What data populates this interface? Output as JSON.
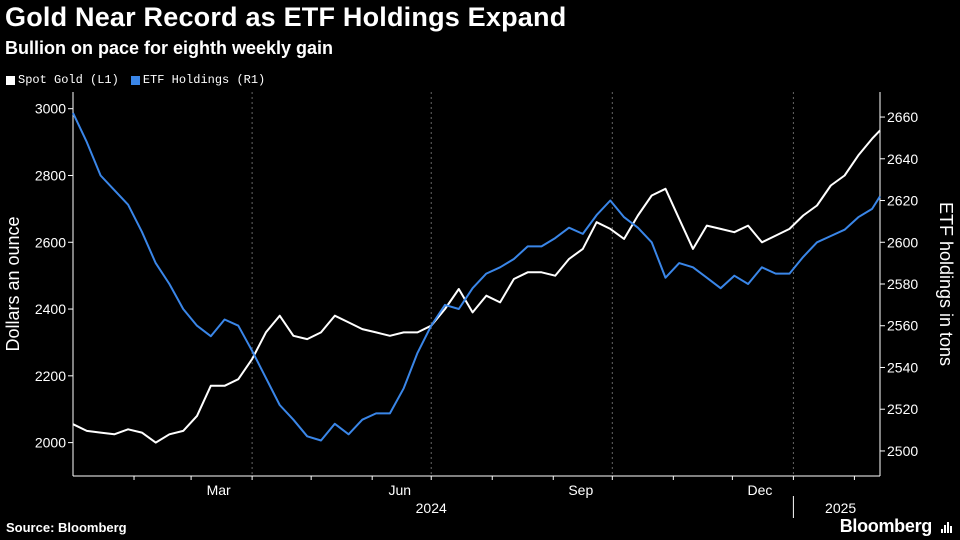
{
  "header": {
    "title": "Gold Near Record as ETF Holdings Expand",
    "subtitle": "Bullion on pace for eighth weekly gain"
  },
  "footer": {
    "source": "Source: Bloomberg",
    "brand": "Bloomberg"
  },
  "colors": {
    "background": "#000000",
    "spot_gold": "#ffffff",
    "etf_holdings": "#3a86e8",
    "grid": "#666666"
  },
  "chart_data": {
    "type": "line",
    "title": "Gold Near Record as ETF Holdings Expand",
    "subtitle": "Bullion on pace for eighth weekly gain",
    "x_range": [
      "2024-01-01",
      "2025-02-14"
    ],
    "x_tick_labels": [
      "Mar",
      "Jun",
      "Sep",
      "Dec",
      "2025"
    ],
    "x_year_labels": [
      "2024",
      "2025"
    ],
    "left_axis": {
      "label": "Dollars an ounce",
      "range": [
        1900,
        3050
      ],
      "ticks": [
        2000,
        2200,
        2400,
        2600,
        2800,
        3000
      ]
    },
    "right_axis": {
      "label": "ETF holdings in tons",
      "range": [
        2488,
        2672
      ],
      "ticks": [
        2500,
        2520,
        2540,
        2560,
        2580,
        2600,
        2620,
        2640,
        2660
      ]
    },
    "grid": "dashed vertical lines at quarters",
    "legend_position": "top-left",
    "series": [
      {
        "name": "Spot Gold (L1)",
        "axis": "left",
        "x": [
          "2024-01-01",
          "2024-01-08",
          "2024-01-15",
          "2024-01-22",
          "2024-01-29",
          "2024-02-05",
          "2024-02-12",
          "2024-02-19",
          "2024-02-26",
          "2024-03-04",
          "2024-03-11",
          "2024-03-18",
          "2024-03-25",
          "2024-04-01",
          "2024-04-08",
          "2024-04-15",
          "2024-04-22",
          "2024-04-29",
          "2024-05-06",
          "2024-05-13",
          "2024-05-20",
          "2024-05-27",
          "2024-06-03",
          "2024-06-10",
          "2024-06-17",
          "2024-06-24",
          "2024-07-01",
          "2024-07-08",
          "2024-07-15",
          "2024-07-22",
          "2024-07-29",
          "2024-08-05",
          "2024-08-12",
          "2024-08-19",
          "2024-08-26",
          "2024-09-02",
          "2024-09-09",
          "2024-09-16",
          "2024-09-23",
          "2024-09-30",
          "2024-10-07",
          "2024-10-14",
          "2024-10-21",
          "2024-10-28",
          "2024-11-04",
          "2024-11-11",
          "2024-11-18",
          "2024-11-25",
          "2024-12-02",
          "2024-12-09",
          "2024-12-16",
          "2024-12-23",
          "2024-12-30",
          "2025-01-06",
          "2025-01-13",
          "2025-01-20",
          "2025-01-27",
          "2025-02-03",
          "2025-02-10",
          "2025-02-14"
        ],
        "values": [
          2055,
          2035,
          2030,
          2025,
          2040,
          2030,
          2000,
          2025,
          2035,
          2080,
          2170,
          2170,
          2190,
          2250,
          2330,
          2380,
          2320,
          2310,
          2330,
          2380,
          2360,
          2340,
          2330,
          2320,
          2330,
          2330,
          2350,
          2400,
          2460,
          2390,
          2440,
          2420,
          2490,
          2510,
          2510,
          2500,
          2550,
          2580,
          2660,
          2640,
          2610,
          2680,
          2740,
          2760,
          2670,
          2580,
          2650,
          2640,
          2630,
          2650,
          2600,
          2620,
          2640,
          2680,
          2710,
          2770,
          2800,
          2860,
          2910,
          2935
        ]
      },
      {
        "name": "ETF Holdings (R1)",
        "axis": "right",
        "x": [
          "2024-01-01",
          "2024-01-08",
          "2024-01-15",
          "2024-01-22",
          "2024-01-29",
          "2024-02-05",
          "2024-02-12",
          "2024-02-19",
          "2024-02-26",
          "2024-03-04",
          "2024-03-11",
          "2024-03-18",
          "2024-03-25",
          "2024-04-01",
          "2024-04-08",
          "2024-04-15",
          "2024-04-22",
          "2024-04-29",
          "2024-05-06",
          "2024-05-13",
          "2024-05-20",
          "2024-05-27",
          "2024-06-03",
          "2024-06-10",
          "2024-06-17",
          "2024-06-24",
          "2024-07-01",
          "2024-07-08",
          "2024-07-15",
          "2024-07-22",
          "2024-07-29",
          "2024-08-05",
          "2024-08-12",
          "2024-08-19",
          "2024-08-26",
          "2024-09-02",
          "2024-09-09",
          "2024-09-16",
          "2024-09-23",
          "2024-09-30",
          "2024-10-07",
          "2024-10-14",
          "2024-10-21",
          "2024-10-28",
          "2024-11-04",
          "2024-11-11",
          "2024-11-18",
          "2024-11-25",
          "2024-12-02",
          "2024-12-09",
          "2024-12-16",
          "2024-12-23",
          "2024-12-30",
          "2025-01-06",
          "2025-01-13",
          "2025-01-20",
          "2025-01-27",
          "2025-02-03",
          "2025-02-10",
          "2025-02-14"
        ],
        "values": [
          2662,
          2648,
          2632,
          2625,
          2618,
          2605,
          2590,
          2580,
          2568,
          2560,
          2555,
          2563,
          2560,
          2548,
          2535,
          2522,
          2515,
          2507,
          2505,
          2513,
          2508,
          2515,
          2518,
          2518,
          2530,
          2547,
          2560,
          2570,
          2568,
          2578,
          2585,
          2588,
          2592,
          2598,
          2598,
          2602,
          2607,
          2604,
          2613,
          2620,
          2612,
          2607,
          2600,
          2583,
          2590,
          2588,
          2583,
          2578,
          2584,
          2580,
          2588,
          2585,
          2585,
          2593,
          2600,
          2603,
          2606,
          2612,
          2616,
          2622
        ]
      }
    ]
  }
}
